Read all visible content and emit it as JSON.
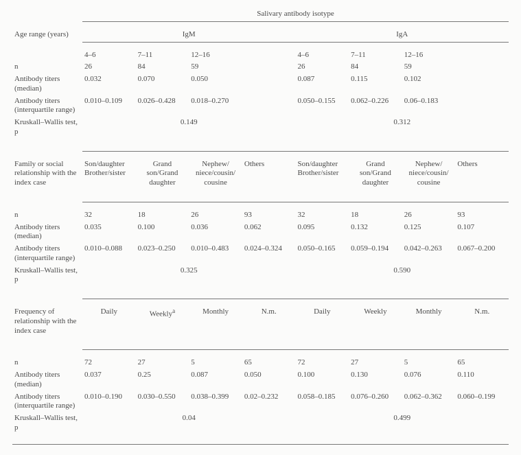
{
  "header": {
    "super": "Salivary antibody isotype",
    "rowLabel": "Age range (years)",
    "igM": "IgM",
    "igA": "IgA"
  },
  "sec1": {
    "r0": {
      "lab": "",
      "m1": "4–6",
      "m2": "7–11",
      "m3": "12–16",
      "a1": "4–6",
      "a2": "7–11",
      "a3": "12–16"
    },
    "r1": {
      "lab": "n",
      "m1": "26",
      "m2": "84",
      "m3": "59",
      "a1": "26",
      "a2": "84",
      "a3": "59"
    },
    "r2": {
      "lab": "Antibody titers (median)",
      "m1": "0.032",
      "m2": "0.070",
      "m3": "0.050",
      "a1": "0.087",
      "a2": "0.115",
      "a3": "0.102"
    },
    "r3": {
      "lab": "Antibody titers (interquartile range)",
      "m1": "0.010–0.109",
      "m2": "0.026–0.428",
      "m3": "0.018–0.270",
      "a1": "0.050–0.155",
      "a2": "0.062–0.226",
      "a3": "0.06–0.183"
    },
    "r4": {
      "lab": "Kruskall–Wallis test, p",
      "mM": "0.149",
      "mA": "0.312"
    }
  },
  "sec2": {
    "headLabel": "Family or social relationship with the index case",
    "h": {
      "m1": "Son/daughter Brother/sister",
      "m2": "Grand son/Grand daughter",
      "m3": "Nephew/ niece/cousin/ cousine",
      "m4": "Others",
      "a1": "Son/daughter Brother/sister",
      "a2": "Grand son/Grand daughter",
      "a3": "Nephew/ niece/cousin/ cousine",
      "a4": "Others"
    },
    "r1": {
      "lab": "n",
      "m1": "32",
      "m2": "18",
      "m3": "26",
      "m4": "93",
      "a1": "32",
      "a2": "18",
      "a3": "26",
      "a4": "93"
    },
    "r2": {
      "lab": "Antibody titers (median)",
      "m1": "0.035",
      "m2": "0.100",
      "m3": "0.036",
      "m4": "0.062",
      "a1": "0.095",
      "a2": "0.132",
      "a3": "0.125",
      "a4": "0.107"
    },
    "r3": {
      "lab": "Antibody titers (interquartile range)",
      "m1": "0.010–0.088",
      "m2": "0.023–0.250",
      "m3": "0.010–0.483",
      "m4": "0.024–0.324",
      "a1": "0.050–0.165",
      "a2": "0.059–0.194",
      "a3": "0.042–0.263",
      "a4": "0.067–0.200"
    },
    "r4": {
      "lab": "Kruskall–Wallis test, p",
      "mM": "0.325",
      "mA": "0.590"
    }
  },
  "sec3": {
    "headLabel": "Frequency of relationship with the index case",
    "h": {
      "m1": "Daily",
      "m2": "Weekly",
      "m3": "Monthly",
      "m4": "N.m.",
      "a1": "Daily",
      "a2": "Weekly",
      "a3": "Monthly",
      "a4": "N.m."
    },
    "footnote": "a",
    "r1": {
      "lab": "n",
      "m1": "72",
      "m2": "27",
      "m3": "5",
      "m4": "65",
      "a1": "72",
      "a2": "27",
      "a3": "5",
      "a4": "65"
    },
    "r2": {
      "lab": "Antibody titers (median)",
      "m1": "0.037",
      "m2": "0.25",
      "m3": "0.087",
      "m4": "0.050",
      "a1": "0.100",
      "a2": "0.130",
      "a3": "0.076",
      "a4": "0.110"
    },
    "r3": {
      "lab": "Antibody titers (interquartile range)",
      "m1": "0.010–0.190",
      "m2": "0.030–0.550",
      "m3": "0.038–0.399",
      "m4": "0.02–0.232",
      "a1": "0.058–0.185",
      "a2": "0.076–0.260",
      "a3": "0.062–0.362",
      "a4": "0.060–0.199"
    },
    "r4": {
      "lab": "Kruskall–Wallis test, p",
      "mM": "0.04",
      "mA": "0.499"
    }
  }
}
